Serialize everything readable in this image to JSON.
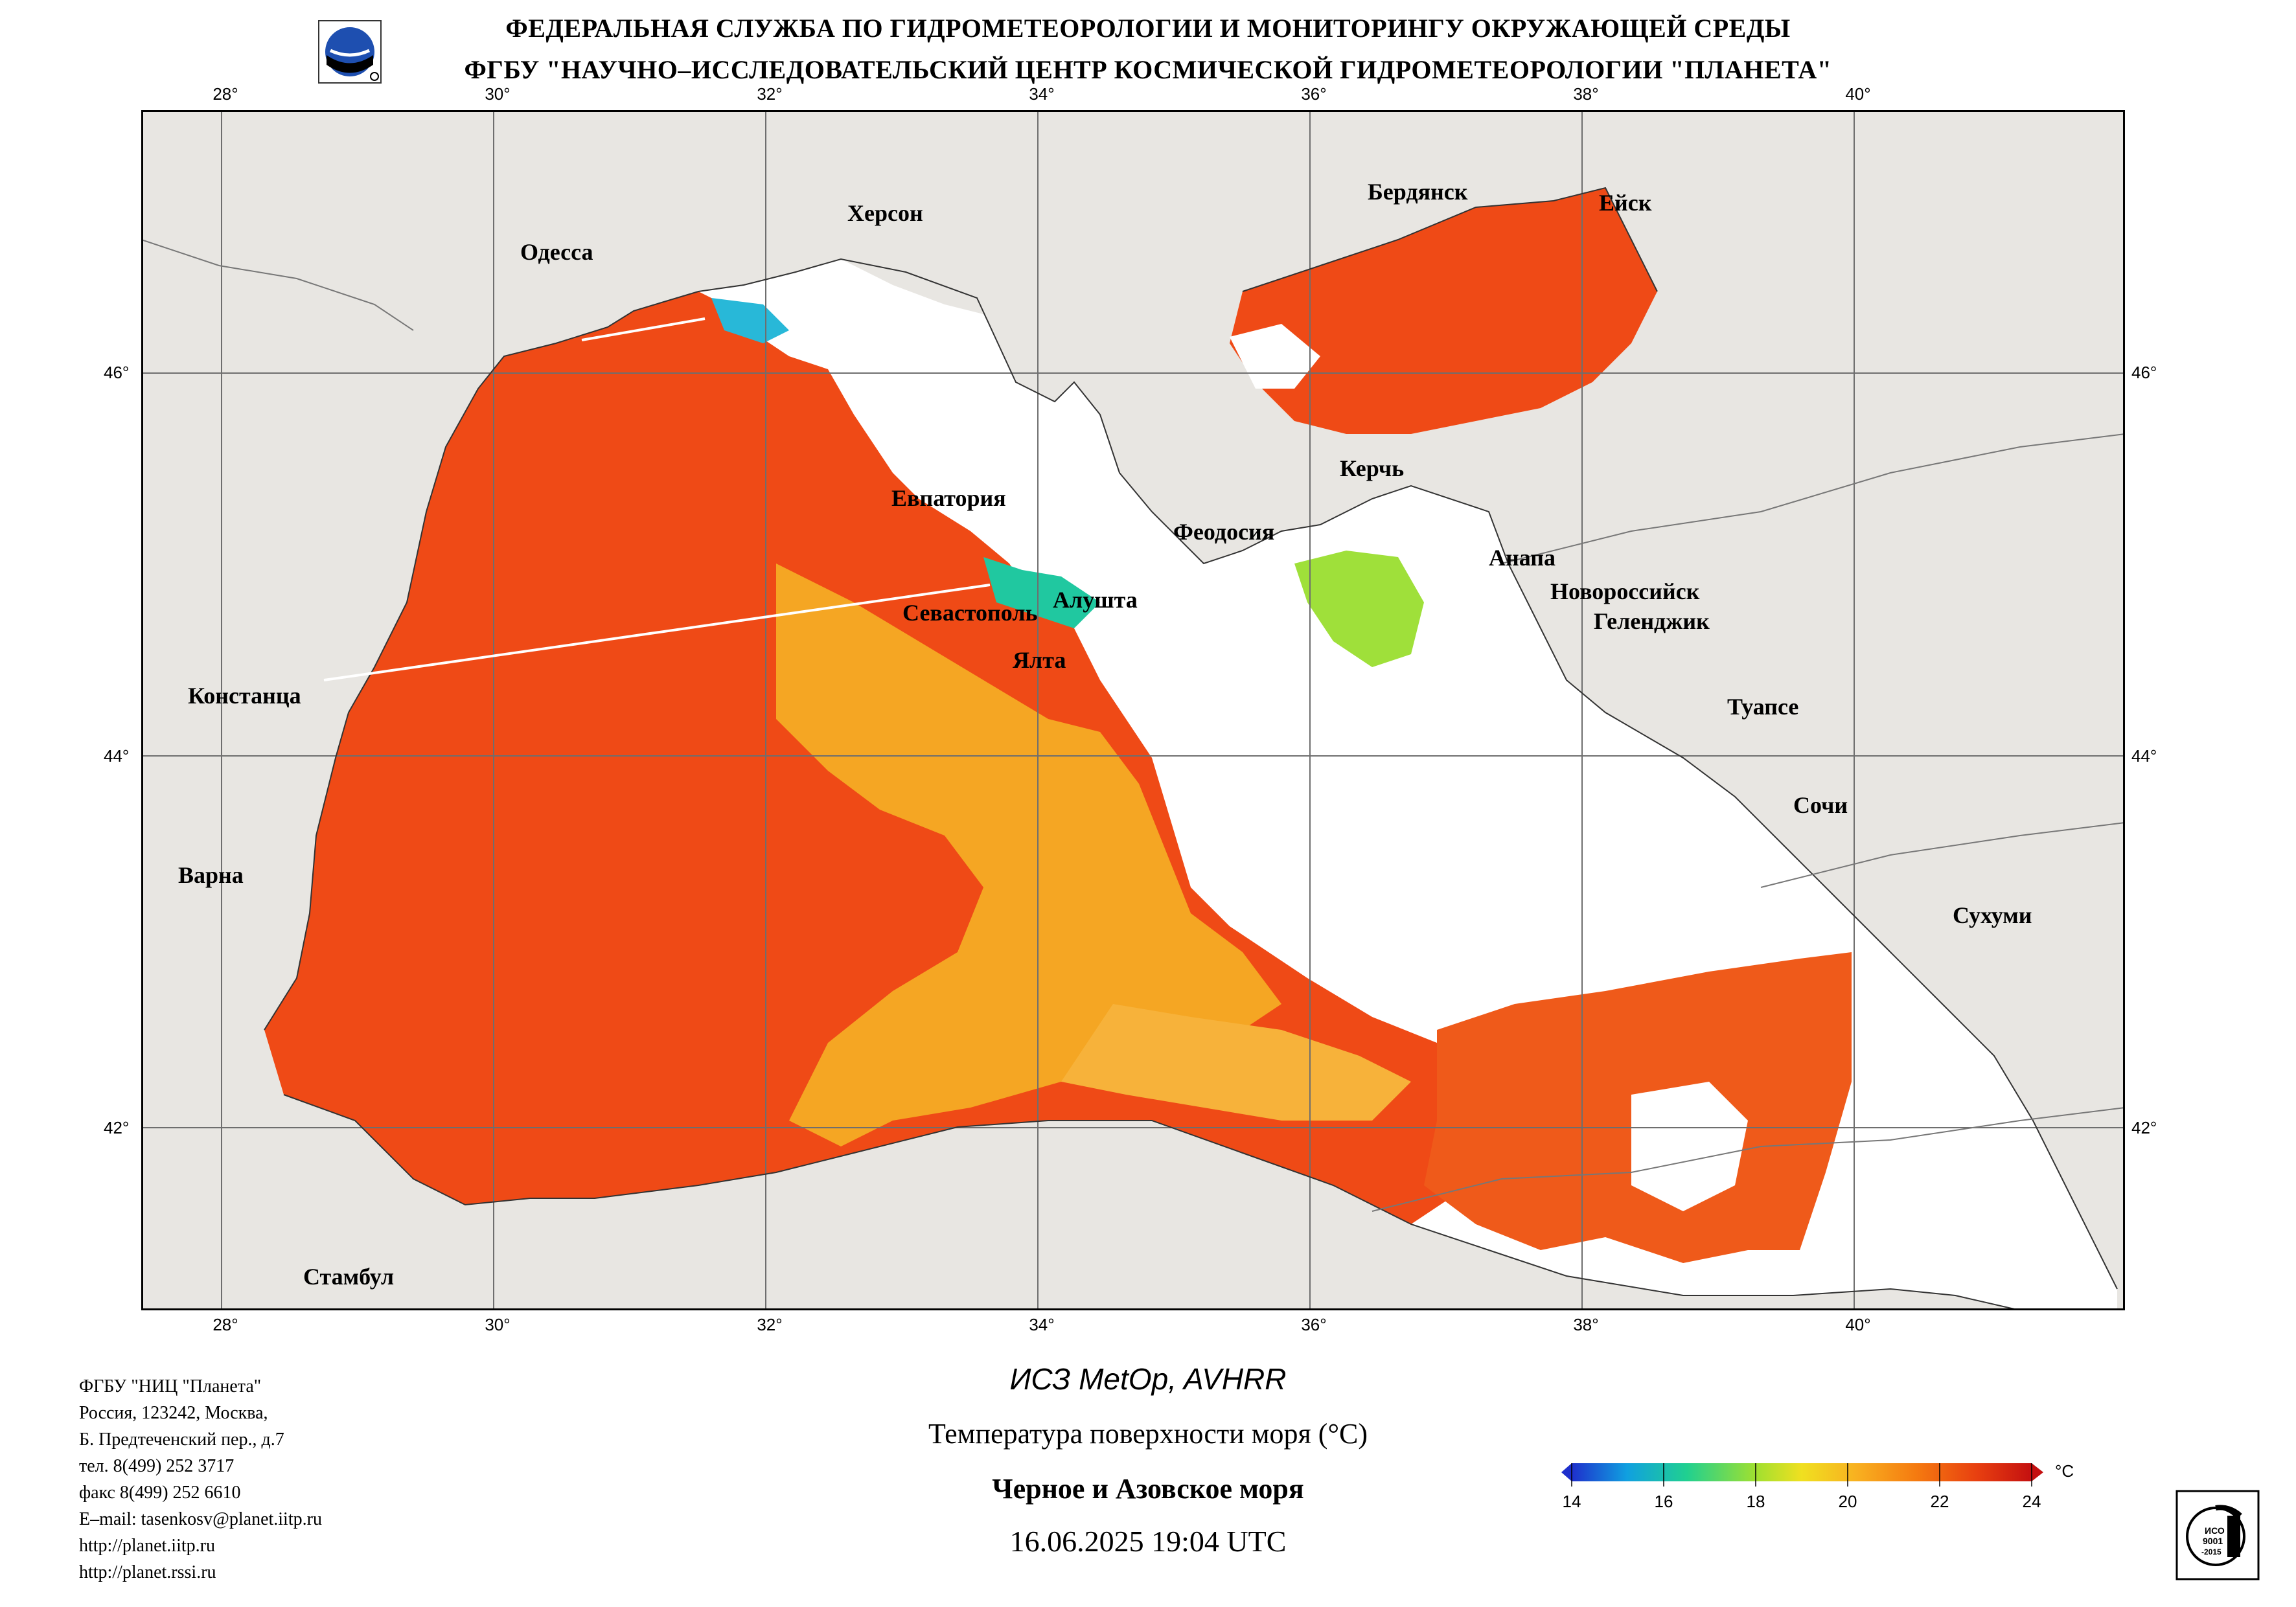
{
  "header": {
    "line1": "ФЕДЕРАЛЬНАЯ СЛУЖБА ПО ГИДРОМЕТЕОРОЛОГИИ И МОНИТОРИНГУ ОКРУЖАЮЩЕЙ СРЕДЫ",
    "line2": "ФГБУ \"НАУЧНО–ИССЛЕДОВАТЕЛЬСКИЙ ЦЕНТР КОСМИЧЕСКОЙ ГИДРОМЕТЕОРОЛОГИИ \"ПЛАНЕТА\""
  },
  "map": {
    "lon_labels": [
      "28°",
      "30°",
      "32°",
      "34°",
      "36°",
      "38°",
      "40°"
    ],
    "lat_labels": [
      "46°",
      "44°",
      "42°"
    ],
    "cities": [
      {
        "id": "odessa",
        "name": "Одесса"
      },
      {
        "id": "kherson",
        "name": "Херсон"
      },
      {
        "id": "berdyansk",
        "name": "Бердянск"
      },
      {
        "id": "yeysk",
        "name": "Ейск"
      },
      {
        "id": "kerch",
        "name": "Керчь"
      },
      {
        "id": "evpatoria",
        "name": "Евпатория"
      },
      {
        "id": "feodosia",
        "name": "Феодосия"
      },
      {
        "id": "anapa",
        "name": "Анапа"
      },
      {
        "id": "novorossiysk",
        "name": "Новороссийск"
      },
      {
        "id": "gelendzhik",
        "name": "Геленджик"
      },
      {
        "id": "sevastopol",
        "name": "Севастополь"
      },
      {
        "id": "alushta",
        "name": "Алушта"
      },
      {
        "id": "yalta",
        "name": "Ялта"
      },
      {
        "id": "constanta",
        "name": "Констанца"
      },
      {
        "id": "tuapse",
        "name": "Туапсе"
      },
      {
        "id": "sochi",
        "name": "Сочи"
      },
      {
        "id": "varna",
        "name": "Варна"
      },
      {
        "id": "sukhumi",
        "name": "Сухуми"
      },
      {
        "id": "istanbul",
        "name": "Стамбул"
      }
    ]
  },
  "info": {
    "lines": [
      "ФГБУ \"НИЦ \"Планета\"",
      "Россия, 123242, Москва,",
      "Б. Предтеченский пер., д.7",
      "тел. 8(499) 252 3717",
      "факс 8(499) 252 6610",
      "E–mail: tasenkosv@planet.iitp.ru",
      "http://planet.iitp.ru",
      "http://planet.rssi.ru"
    ]
  },
  "caption": {
    "satellite": "ИСЗ MetOp, AVHRR",
    "product": "Температура поверхности моря (°C)",
    "region": "Черное и Азовское моря",
    "datetime": "16.06.2025 19:04 UTC"
  },
  "legend": {
    "unit": "°C",
    "ticks": [
      "14",
      "16",
      "18",
      "20",
      "22",
      "24"
    ],
    "colors": [
      "#1e2fcc",
      "#10a0e0",
      "#20d090",
      "#a0e030",
      "#f0e020",
      "#f8b020",
      "#f57a10",
      "#e84010",
      "#c41010"
    ]
  },
  "logo_text": "ДОБРОВОЛЬНЫЙ ИСО 9001 -2015 СЕРТИФИКАЦИЯ",
  "colors": {
    "land": "#e8e6e2",
    "sea_main": "#ef4a16",
    "sea_light": "#f5a623",
    "no_data": "#ffffff"
  }
}
